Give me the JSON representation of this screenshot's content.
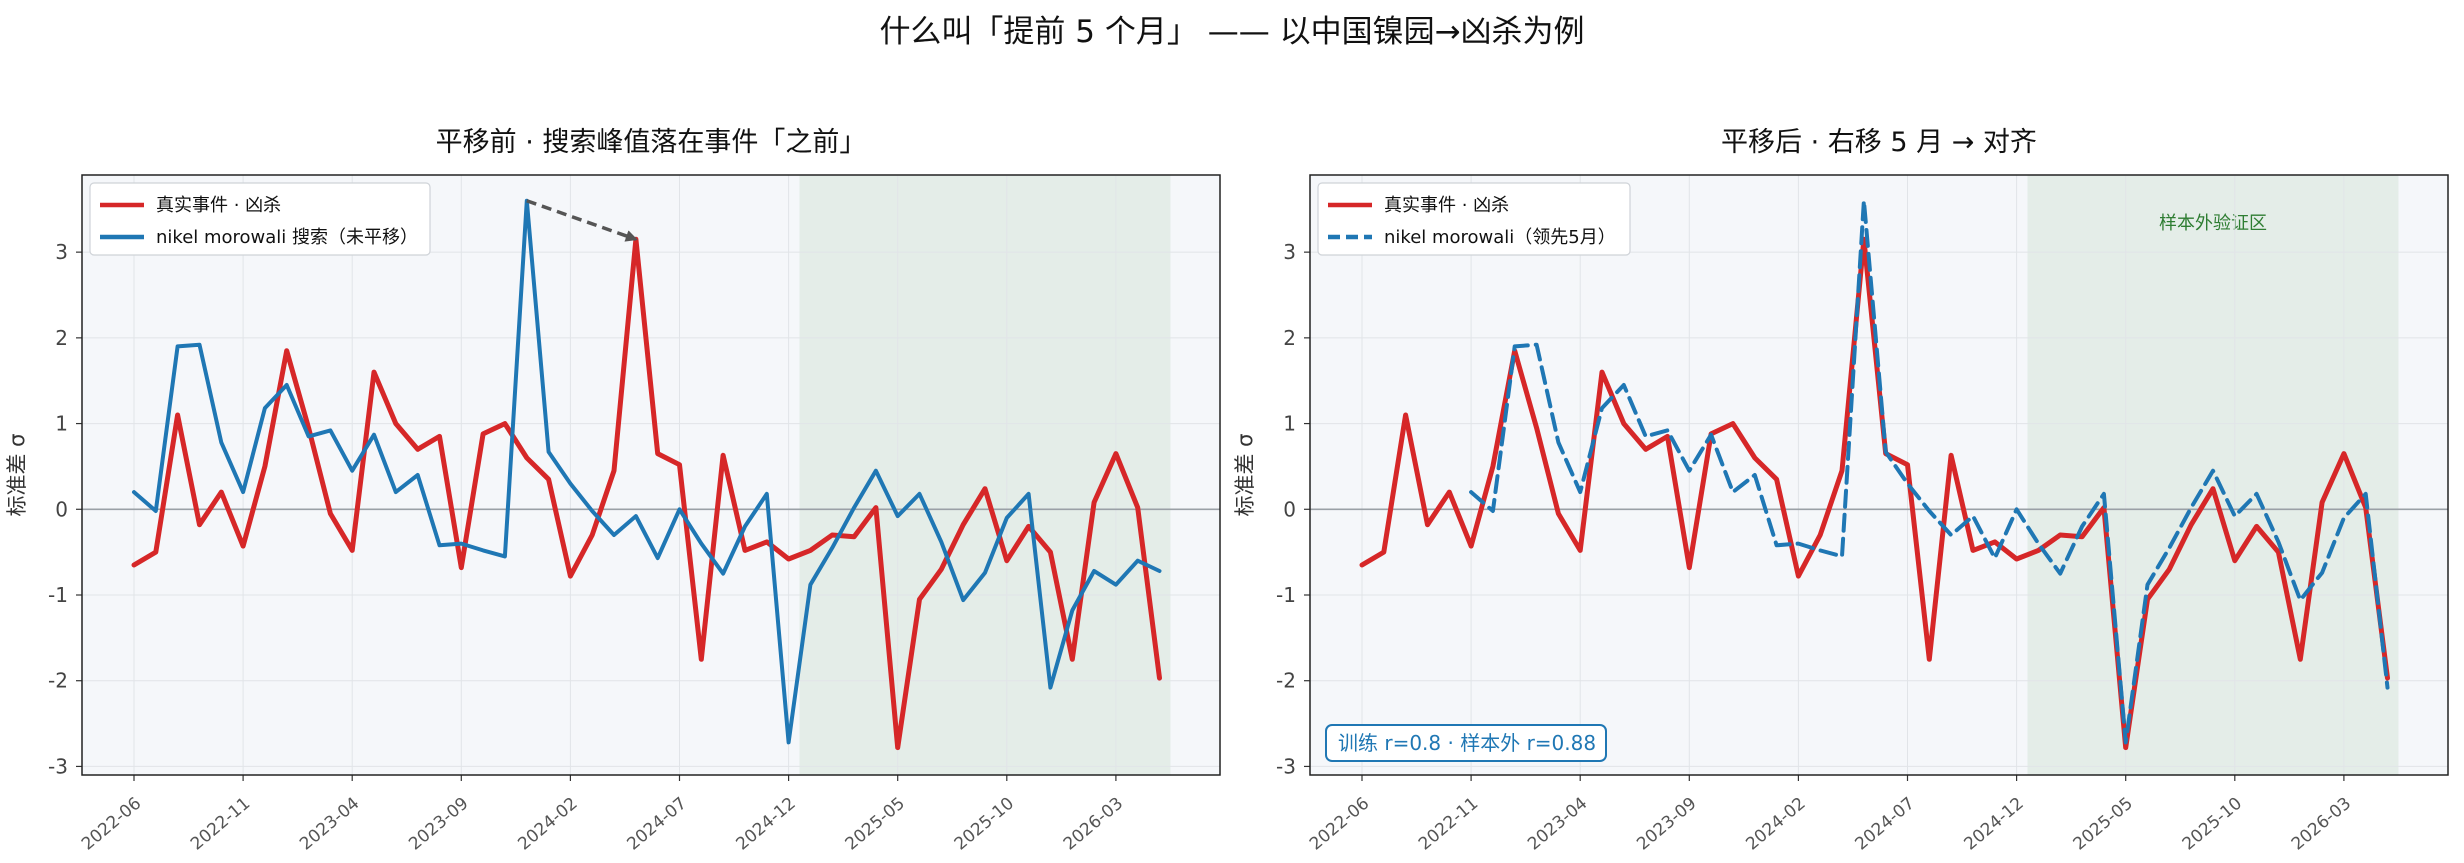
{
  "suptitle": "什么叫「提前 5 个月」 —— 以中国镍园→凶杀为例",
  "colors": {
    "event": "#d62728",
    "search": "#1f77b4",
    "shade": "#e4ede8",
    "panel_bg": "#f5f7fa",
    "grid": "#e1e4e8",
    "zero_line": "#9aa0a6",
    "arrow": "#555555"
  },
  "chart_data": [
    {
      "type": "line",
      "title": "平移前 · 搜索峰值落在事件「之前」",
      "ylabel": "标准差 σ",
      "ylim": [
        -3.1,
        3.9
      ],
      "yticks": [
        -3,
        -2,
        -1,
        0,
        1,
        2,
        3
      ],
      "xticks": [
        "2022-06",
        "2022-11",
        "2023-04",
        "2023-09",
        "2024-02",
        "2024-07",
        "2024-12",
        "2025-05",
        "2025-10",
        "2026-03"
      ],
      "x_start": "2022-06",
      "out_of_sample": {
        "start": "2025-01",
        "end": "2026-05"
      },
      "annotation": {
        "type": "arrow",
        "from": {
          "x": "2023-12",
          "y": 3.6
        },
        "to": {
          "x": "2024-05",
          "y": 3.15
        }
      },
      "legend": "top-left",
      "series": [
        {
          "name": "真实事件 · 凶杀",
          "style": "solid",
          "values": [
            -0.65,
            -0.5,
            1.1,
            -0.18,
            0.2,
            -0.43,
            0.5,
            1.85,
            0.95,
            -0.05,
            -0.48,
            1.6,
            1.0,
            0.7,
            0.85,
            -0.68,
            0.88,
            1.0,
            0.6,
            0.35,
            -0.78,
            -0.3,
            0.45,
            3.15,
            0.65,
            0.52,
            -1.75,
            0.63,
            -0.48,
            -0.38,
            -0.58,
            -0.48,
            -0.3,
            -0.32,
            0.02,
            -2.78,
            -1.05,
            -0.7,
            -0.18,
            0.24,
            -0.6,
            -0.2,
            -0.5,
            -1.75,
            0.08,
            0.65,
            0.02,
            -1.97
          ]
        },
        {
          "name": "nikel morowali 搜索（未平移）",
          "style": "solid",
          "values": [
            0.2,
            -0.02,
            1.9,
            1.92,
            0.78,
            0.2,
            1.18,
            1.45,
            0.85,
            0.92,
            0.45,
            0.87,
            0.2,
            0.4,
            -0.42,
            -0.4,
            -0.48,
            -0.55,
            3.6,
            0.67,
            0.3,
            -0.02,
            -0.3,
            -0.08,
            -0.57,
            0.0,
            -0.4,
            -0.75,
            -0.2,
            0.18,
            -2.72,
            -0.88,
            -0.45,
            0.02,
            0.45,
            -0.08,
            0.18,
            -0.38,
            -1.06,
            -0.74,
            -0.1,
            0.18,
            -2.08,
            -1.18,
            -0.72,
            -0.88,
            -0.6,
            -0.72
          ]
        }
      ]
    },
    {
      "type": "line",
      "title": "平移后 · 右移 5 月 → 对齐",
      "ylabel": "标准差 σ",
      "ylim": [
        -3.1,
        3.9
      ],
      "yticks": [
        -3,
        -2,
        -1,
        0,
        1,
        2,
        3
      ],
      "xticks": [
        "2022-06",
        "2022-11",
        "2023-04",
        "2023-09",
        "2024-02",
        "2024-07",
        "2024-12",
        "2025-05",
        "2025-10",
        "2026-03"
      ],
      "x_start": "2022-06",
      "out_of_sample": {
        "start": "2025-01",
        "end": "2026-05",
        "label": "样本外验证区"
      },
      "note": "训练 r=0.8 · 样本外 r=0.88",
      "legend": "top-left",
      "series": [
        {
          "name": "真实事件 · 凶杀",
          "style": "solid",
          "values": [
            -0.65,
            -0.5,
            1.1,
            -0.18,
            0.2,
            -0.43,
            0.5,
            1.85,
            0.95,
            -0.05,
            -0.48,
            1.6,
            1.0,
            0.7,
            0.85,
            -0.68,
            0.88,
            1.0,
            0.6,
            0.35,
            -0.78,
            -0.3,
            0.45,
            3.15,
            0.65,
            0.52,
            -1.75,
            0.63,
            -0.48,
            -0.38,
            -0.58,
            -0.48,
            -0.3,
            -0.32,
            0.02,
            -2.78,
            -1.05,
            -0.7,
            -0.18,
            0.24,
            -0.6,
            -0.2,
            -0.5,
            -1.75,
            0.08,
            0.65,
            0.02,
            -1.97
          ]
        },
        {
          "name": "nikel morowali（领先5月）",
          "style": "dashed",
          "start": "2022-11",
          "values": [
            0.2,
            -0.02,
            1.9,
            1.92,
            0.78,
            0.2,
            1.18,
            1.45,
            0.85,
            0.92,
            0.45,
            0.87,
            0.2,
            0.4,
            -0.42,
            -0.4,
            -0.48,
            -0.55,
            3.6,
            0.67,
            0.3,
            -0.02,
            -0.3,
            -0.08,
            -0.57,
            0.0,
            -0.4,
            -0.75,
            -0.2,
            0.18,
            -2.72,
            -0.88,
            -0.45,
            0.02,
            0.45,
            -0.08,
            0.18,
            -0.38,
            -1.06,
            -0.74,
            -0.1,
            0.18,
            -2.08
          ]
        }
      ]
    }
  ]
}
